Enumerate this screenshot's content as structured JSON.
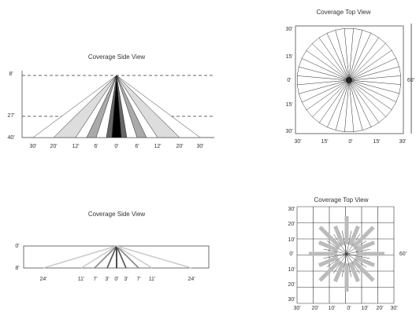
{
  "diagrams": [
    {
      "title": "Coverage Side View",
      "left_labels": [
        "8'",
        "27'",
        "40'"
      ],
      "bottom_labels": [
        "30'",
        "20'",
        "12'",
        "6'",
        "0'",
        "6'",
        "12'",
        "20'",
        "30'"
      ]
    },
    {
      "title": "Coverage Top View",
      "left_labels": [
        "30'",
        "15'",
        "0'",
        "15'",
        "30'"
      ],
      "bottom_labels": [
        "30'",
        "15'",
        "0'",
        "15'",
        "30'"
      ],
      "right_label": "60'"
    },
    {
      "title": "Coverage Side View",
      "left_labels": [
        "0'",
        "8'"
      ],
      "bottom_labels": [
        "24'",
        "11'",
        "7'",
        "3'",
        "0'",
        "3'",
        "7'",
        "11'",
        "24'"
      ]
    },
    {
      "title": "Coverage Top View",
      "left_labels": [
        "30'",
        "20'",
        "10'",
        "0'",
        "10'",
        "20'",
        "30'"
      ],
      "bottom_labels": [
        "30'",
        "20'",
        "10'",
        "0'",
        "10'",
        "20'",
        "30'"
      ],
      "right_label": "60'"
    }
  ]
}
